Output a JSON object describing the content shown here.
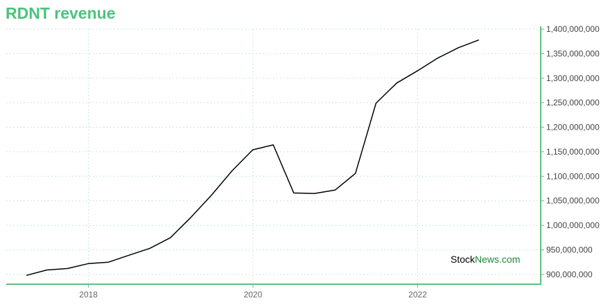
{
  "colors": {
    "title": "#4cc27d",
    "axis": "#5cbf7e",
    "grid": "#b8dcd6",
    "line": "#000000",
    "watermark_stock": "#000000",
    "watermark_news": "#1a8a3a"
  },
  "watermark": {
    "part1": "Stock",
    "part2": "News",
    "part3": ".com"
  },
  "chart_data": {
    "type": "line",
    "title": "RDNT revenue",
    "xlabel": "",
    "ylabel": "",
    "x_axis": "date",
    "xlim": [
      "2017-01-01",
      "2023-07-01"
    ],
    "ylim": [
      880000000,
      1400000000
    ],
    "grid": true,
    "legend": "none",
    "y_axis_position": "right",
    "x_ticks": [
      {
        "value": "2018-01-01",
        "label": "2018"
      },
      {
        "value": "2020-01-01",
        "label": "2020"
      },
      {
        "value": "2022-01-01",
        "label": "2022"
      }
    ],
    "y_ticks": [
      {
        "value": 900000000,
        "label": "900,000,000"
      },
      {
        "value": 950000000,
        "label": "950,000,000"
      },
      {
        "value": 1000000000,
        "label": "1,000,000,000"
      },
      {
        "value": 1050000000,
        "label": "1,050,000,000"
      },
      {
        "value": 1100000000,
        "label": "1,100,000,000"
      },
      {
        "value": 1150000000,
        "label": "1,150,000,000"
      },
      {
        "value": 1200000000,
        "label": "1,200,000,000"
      },
      {
        "value": 1250000000,
        "label": "1,250,000,000"
      },
      {
        "value": 1300000000,
        "label": "1,300,000,000"
      },
      {
        "value": 1350000000,
        "label": "1,350,000,000"
      },
      {
        "value": 1400000000,
        "label": "1,400,000,000"
      }
    ],
    "series": [
      {
        "points": [
          {
            "x": "2017-03-31",
            "y": 898000000
          },
          {
            "x": "2017-06-30",
            "y": 909000000
          },
          {
            "x": "2017-09-30",
            "y": 912000000
          },
          {
            "x": "2017-12-31",
            "y": 922000000
          },
          {
            "x": "2018-03-31",
            "y": 925000000
          },
          {
            "x": "2018-06-30",
            "y": 939000000
          },
          {
            "x": "2018-09-30",
            "y": 953000000
          },
          {
            "x": "2018-12-31",
            "y": 975000000
          },
          {
            "x": "2019-03-31",
            "y": 1016000000
          },
          {
            "x": "2019-06-30",
            "y": 1061000000
          },
          {
            "x": "2019-09-30",
            "y": 1111000000
          },
          {
            "x": "2019-12-31",
            "y": 1154000000
          },
          {
            "x": "2020-03-31",
            "y": 1164000000
          },
          {
            "x": "2020-06-30",
            "y": 1066000000
          },
          {
            "x": "2020-09-30",
            "y": 1065000000
          },
          {
            "x": "2020-12-31",
            "y": 1072000000
          },
          {
            "x": "2021-03-31",
            "y": 1106000000
          },
          {
            "x": "2021-06-30",
            "y": 1249000000
          },
          {
            "x": "2021-09-30",
            "y": 1290000000
          },
          {
            "x": "2021-12-31",
            "y": 1315000000
          },
          {
            "x": "2022-03-31",
            "y": 1341000000
          },
          {
            "x": "2022-06-30",
            "y": 1362000000
          },
          {
            "x": "2022-09-30",
            "y": 1378000000
          }
        ]
      }
    ]
  }
}
